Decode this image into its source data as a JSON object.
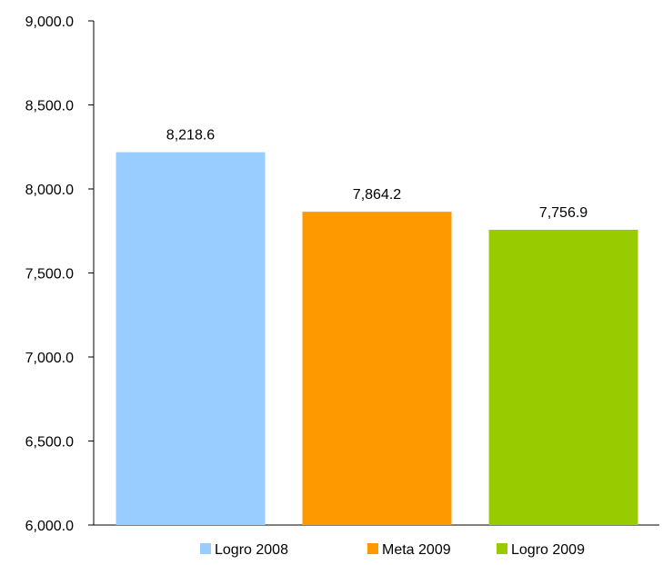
{
  "chart_data": {
    "type": "bar",
    "categories": [
      "Logro 2008",
      "Meta 2009",
      "Logro 2009"
    ],
    "values": [
      8218.6,
      7864.2,
      7756.9
    ],
    "data_labels": [
      "8,218.6",
      "7,864.2",
      "7,756.9"
    ],
    "colors": [
      "#99CCFF",
      "#FF9900",
      "#99CC00"
    ],
    "ylim": [
      6000,
      9000
    ],
    "yticks": [
      6000,
      6500,
      7000,
      7500,
      8000,
      8500,
      9000
    ],
    "ytick_labels": [
      "6,000.0",
      "6,500.0",
      "7,000.0",
      "7,500.0",
      "8,000.0",
      "8,500.0",
      "9,000.0"
    ],
    "legend": {
      "position": "bottom",
      "entries": [
        "Logro 2008",
        "Meta 2009",
        "Logro 2009"
      ]
    },
    "grid": false
  }
}
